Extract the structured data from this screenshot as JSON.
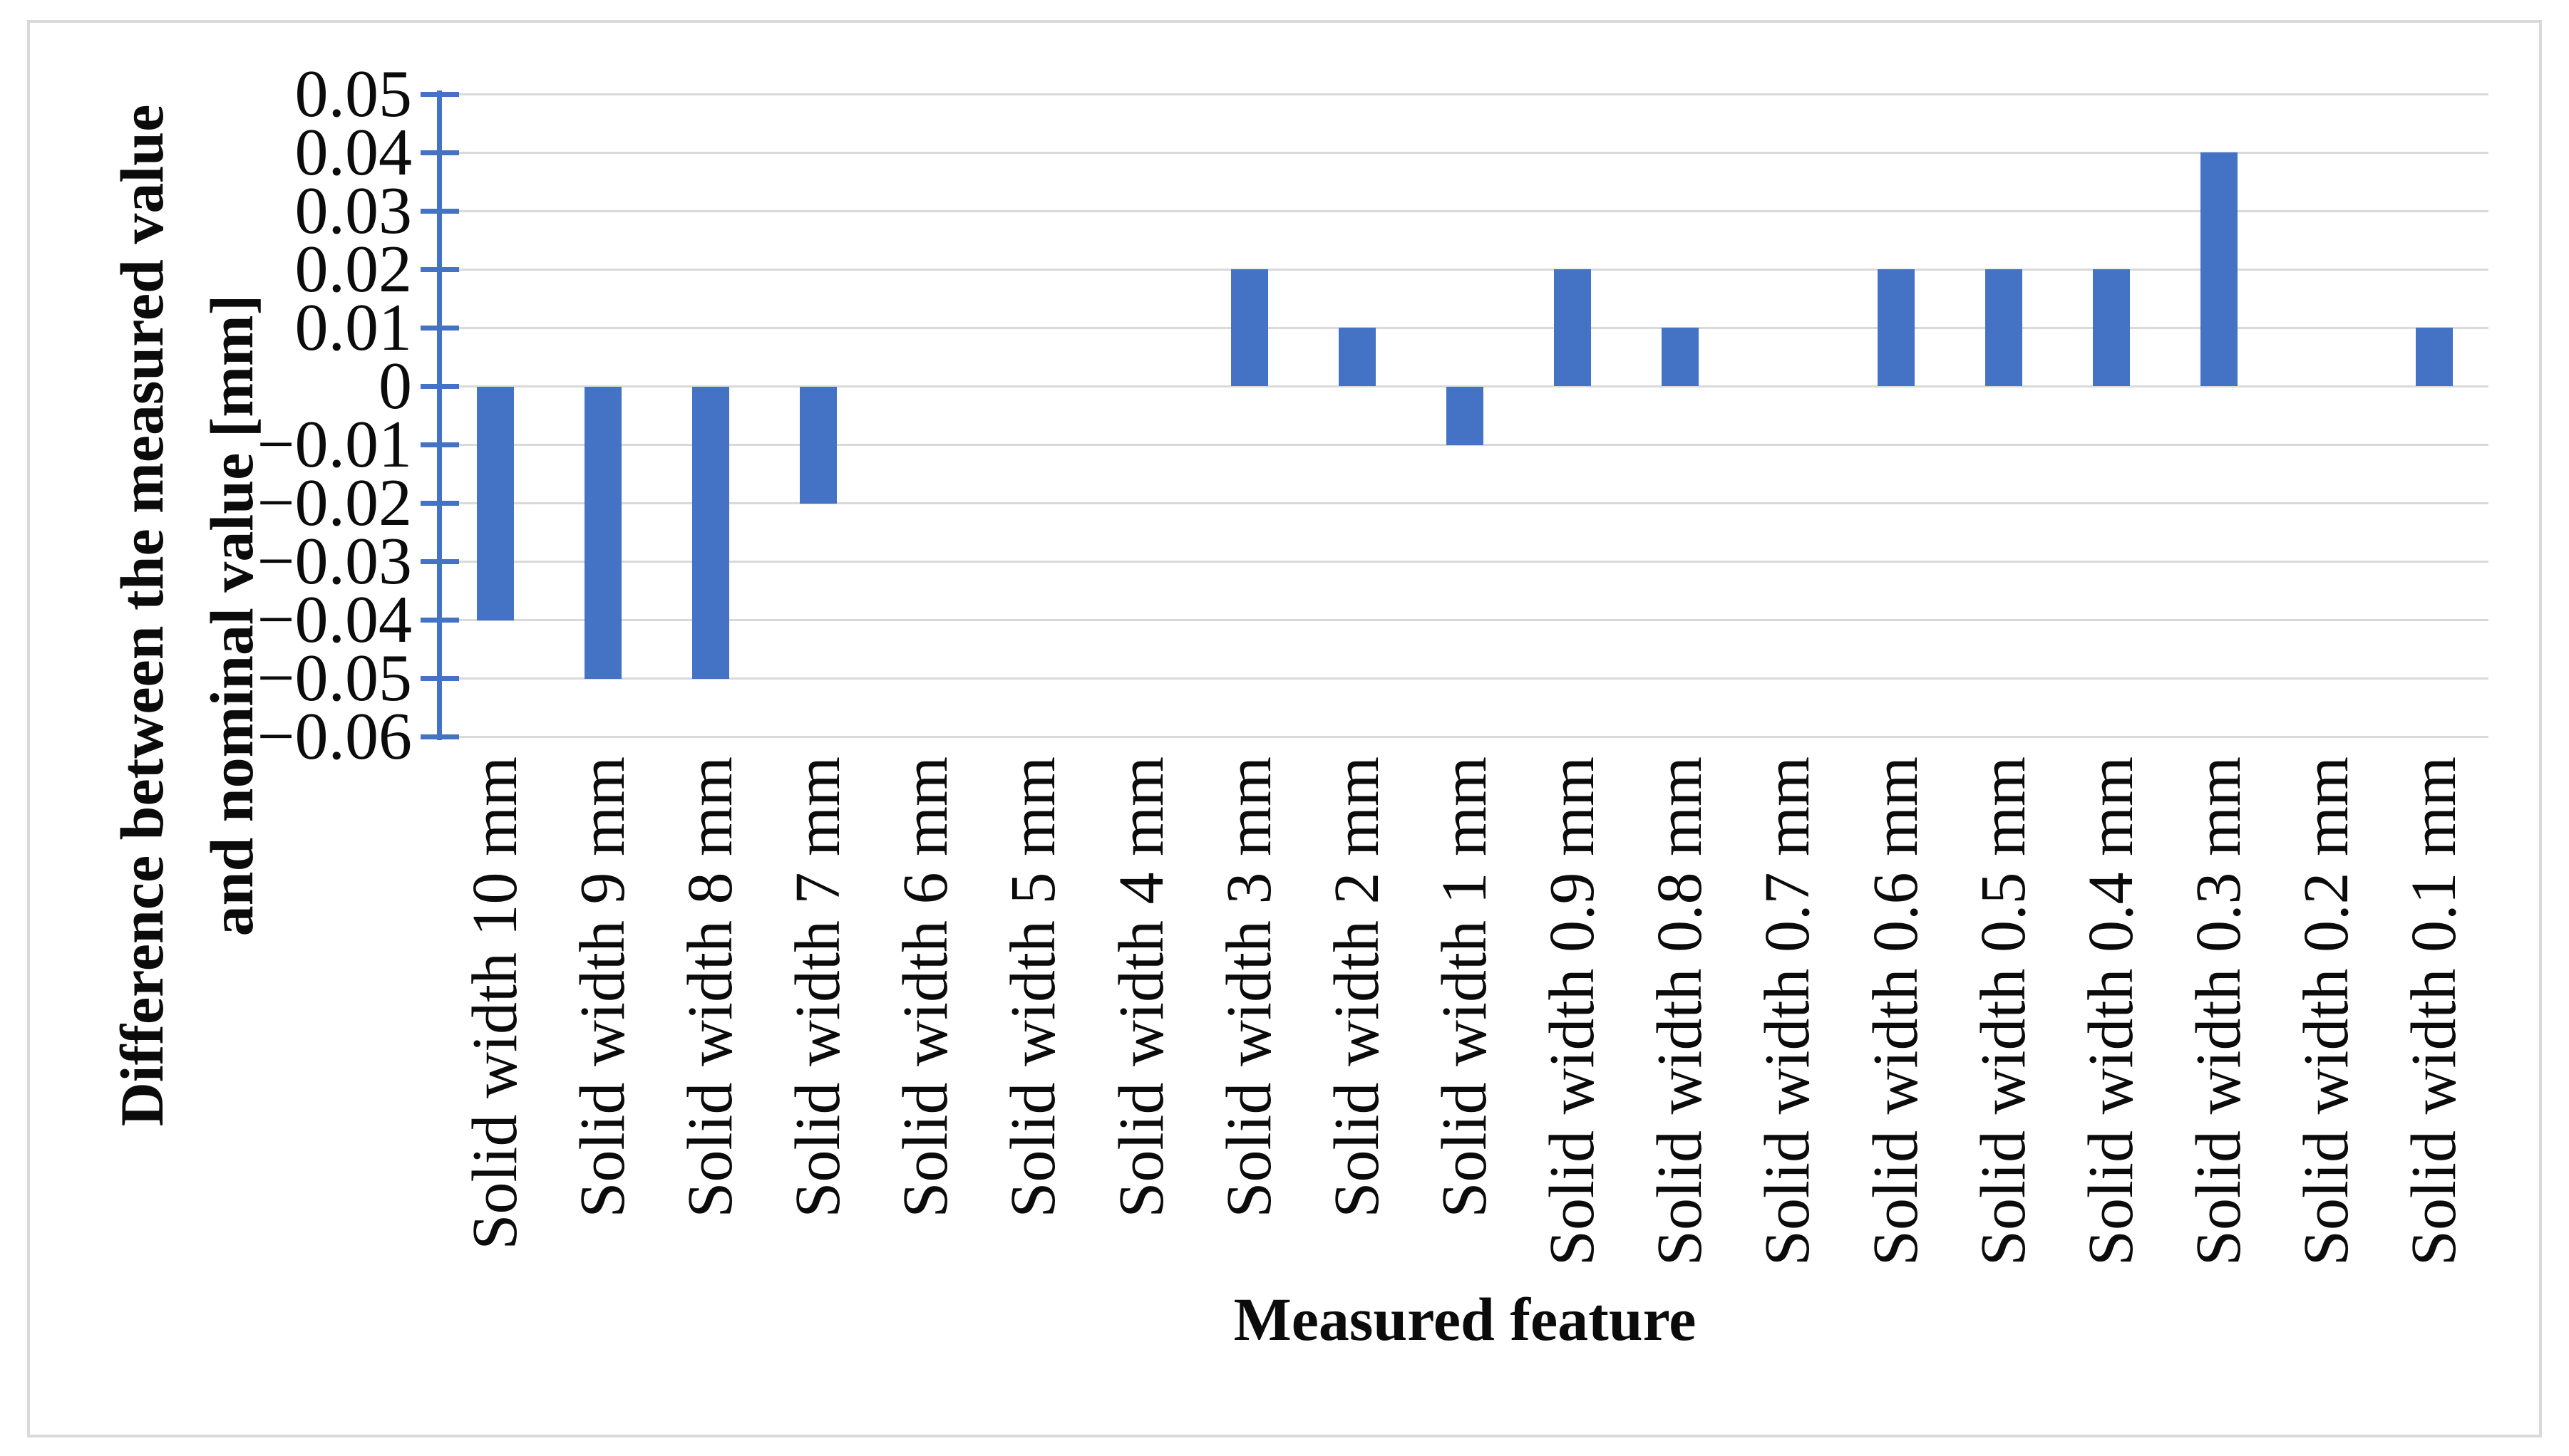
{
  "figure": {
    "background": "#ffffff",
    "frame_border_color": "#d9d9d9"
  },
  "chart_data": {
    "type": "bar",
    "title": "",
    "xlabel": "Measured feature",
    "ylabel": "Difference between the measured value and nominal value [mm]",
    "ylabel_lines": [
      "Difference between the measured value",
      "and nominal value [mm]"
    ],
    "categories": [
      "Solid width 10 mm",
      "Solid width 9 mm",
      "Solid width 8 mm",
      "Solid width 7 mm",
      "Solid width 6 mm",
      "Solid width 5 mm",
      "Solid width 4 mm",
      "Solid width 3 mm",
      "Solid width 2 mm",
      "Solid width 1 mm",
      "Solid width 0.9 mm",
      "Solid width 0.8 mm",
      "Solid width 0.7 mm",
      "Solid width 0.6 mm",
      "Solid width 0.5 mm",
      "Solid width 0.4 mm",
      "Solid width 0.3 mm",
      "Solid width 0.2 mm",
      "Solid width 0.1 mm"
    ],
    "values": [
      -0.04,
      -0.05,
      -0.05,
      -0.02,
      0,
      0,
      0,
      0.02,
      0.01,
      -0.01,
      0.02,
      0.01,
      0,
      0.02,
      0.02,
      0.02,
      0.04,
      0,
      0.01
    ],
    "ylim": [
      -0.06,
      0.05
    ],
    "y_tick_step": 0.01,
    "y_tick_labels": [
      "0.05",
      "0.04",
      "0.03",
      "0.02",
      "0.01",
      "0",
      "−0.01",
      "−0.02",
      "−0.03",
      "−0.04",
      "−0.05",
      "−0.06"
    ],
    "grid": true,
    "legend_position": "none",
    "bar_color": "#4472C4",
    "axis_color": "#4472C4",
    "gridline_color": "#D9D9D9",
    "text_color": "#0b0b0b"
  }
}
